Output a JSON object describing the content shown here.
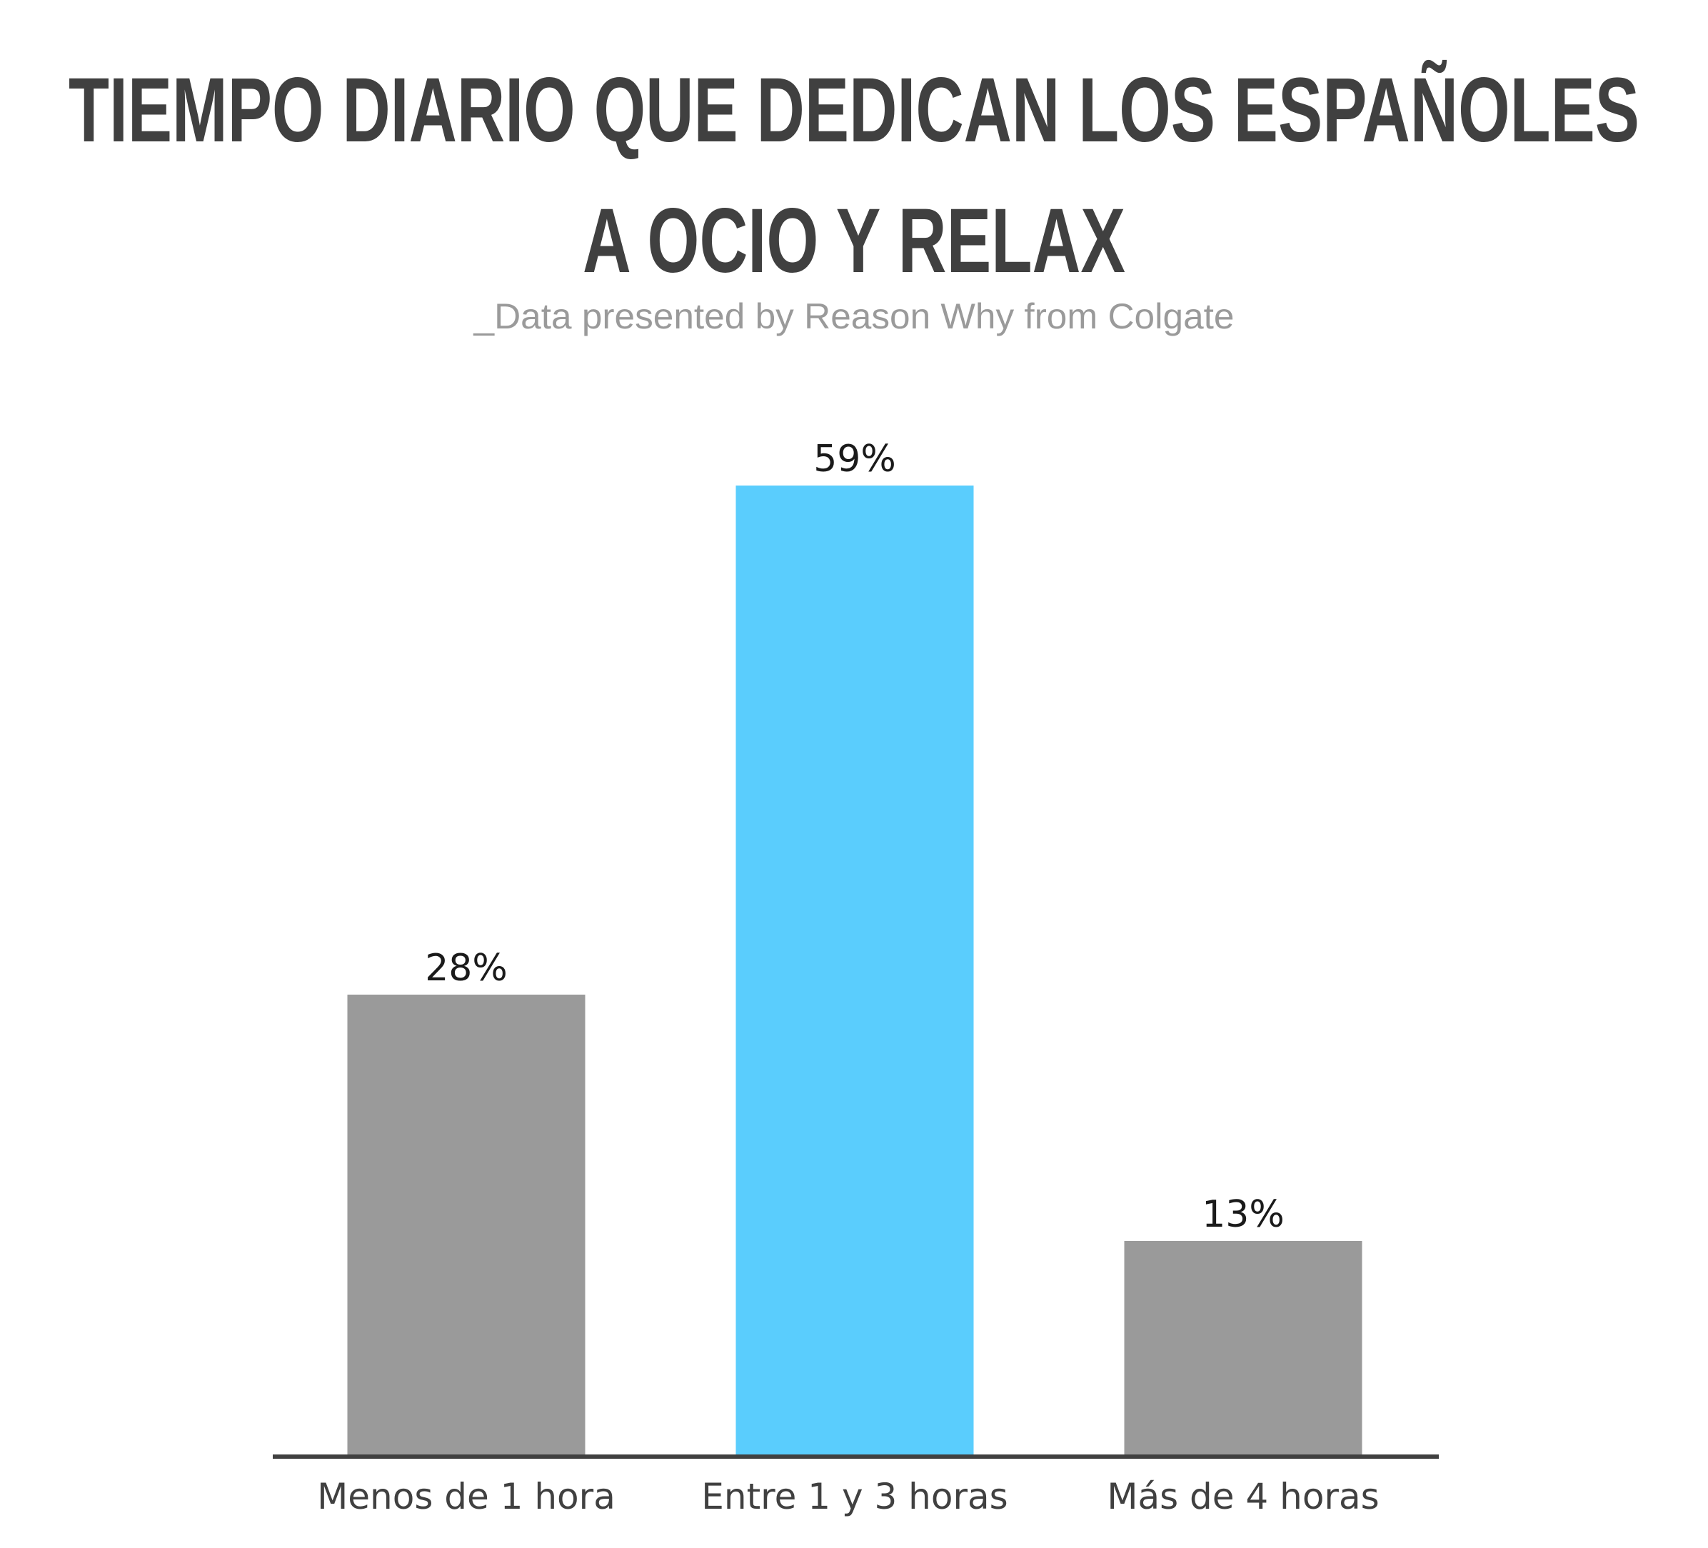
{
  "chart_data": {
    "type": "bar",
    "title_lines": [
      "TIEMPO DIARIO QUE DEDICAN LOS ESPAÑOLES",
      "A OCIO Y RELAX"
    ],
    "subtitle": "_Data presented by Reason Why from Colgate",
    "categories": [
      "Menos de 1 hora",
      "Entre 1 y 3 horas",
      "Más de 4 horas"
    ],
    "values": [
      28,
      59,
      13
    ],
    "value_labels": [
      "28%",
      "59%",
      "13%"
    ],
    "bar_colors": [
      "#9a9a9a",
      "#5acdfd",
      "#9a9a9a"
    ],
    "axis_color": "#404040",
    "ylim": [
      0,
      59
    ],
    "grid": false,
    "legend": "none"
  }
}
